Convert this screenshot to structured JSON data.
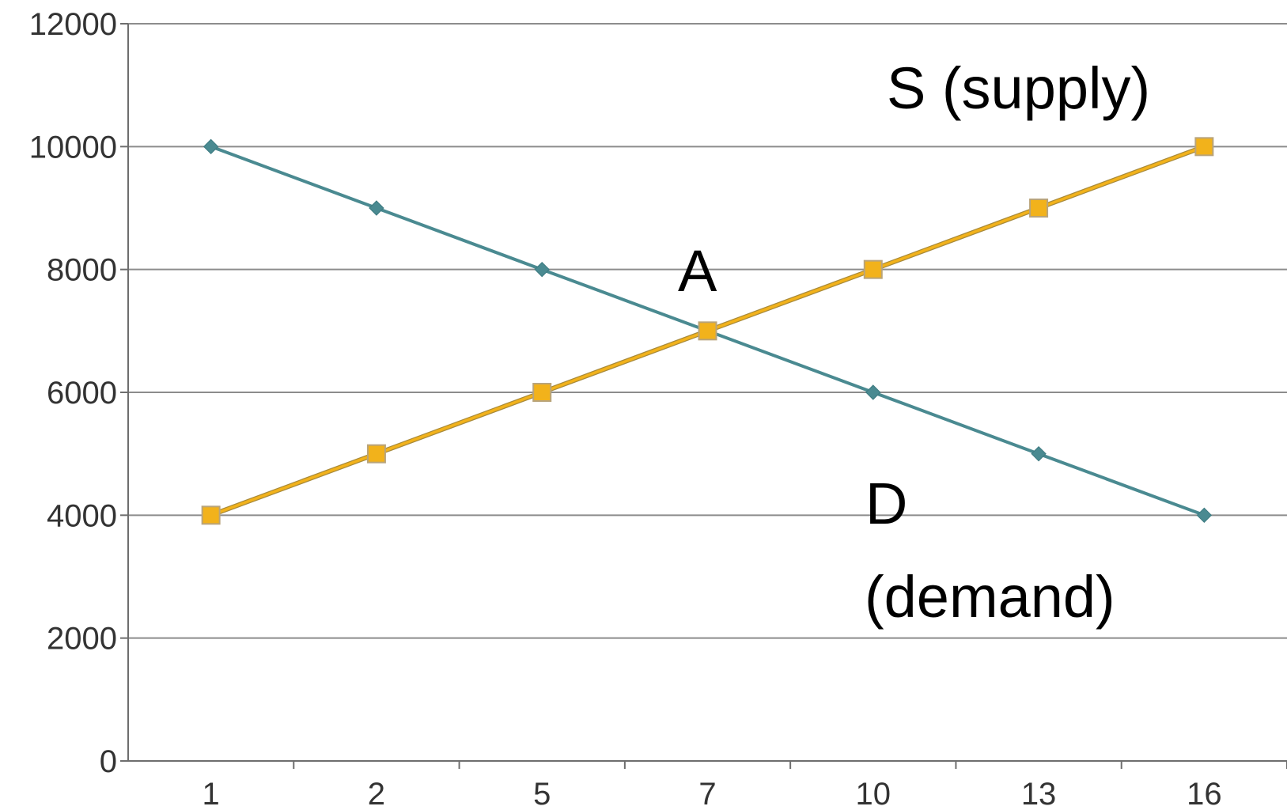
{
  "chart_data": {
    "type": "line",
    "categories": [
      "1",
      "2",
      "5",
      "7",
      "10",
      "13",
      "16"
    ],
    "series": [
      {
        "values": [
          10000,
          9000,
          8000,
          7000,
          6000,
          5000,
          4000
        ],
        "color": "#4a8a91",
        "marker": "diamond"
      },
      {
        "values": [
          4000,
          5000,
          6000,
          7000,
          8000,
          9000,
          10000
        ],
        "color": "#f2b21b",
        "marker": "square"
      }
    ],
    "y_ticks": [
      "0",
      "2000",
      "4000",
      "6000",
      "8000",
      "10000",
      "12000"
    ],
    "ylim": [
      0,
      12000
    ],
    "grid": true,
    "annotations": {
      "supply": "S (supply)",
      "point": "A",
      "demand_1": "D",
      "demand_2": "(demand)"
    }
  }
}
